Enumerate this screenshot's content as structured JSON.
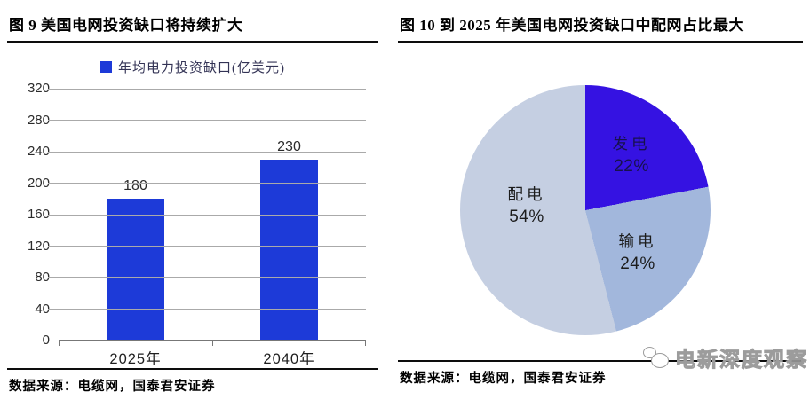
{
  "figure9": {
    "title": "图 9 美国电网投资缺口将持续扩大",
    "legend_label": "年均电力投资缺口(亿美元)",
    "source": "数据来源：电缆网，国泰君安证券"
  },
  "figure10": {
    "title": "图 10 到 2025 年美国电网投资缺口中配网占比最大",
    "source": "数据来源：电缆网，国泰君安证券",
    "watermark": "电新深度观察"
  },
  "colors": {
    "bar_blue": "#1d3ad8",
    "pie_generation_blue": "#3512e2",
    "pie_transmission_gray_blue": "#a2b7dc",
    "pie_distribution_light_blue": "#c5cfe2"
  },
  "chart_data": [
    {
      "type": "bar",
      "title": "图 9 美国电网投资缺口将持续扩大",
      "legend": [
        "年均电力投资缺口(亿美元)"
      ],
      "legend_position": "top",
      "categories": [
        "2025年",
        "2040年"
      ],
      "values": [
        180,
        230
      ],
      "xlabel": "",
      "ylabel": "",
      "ylim": [
        0,
        320
      ],
      "yticks": [
        0,
        40,
        80,
        120,
        160,
        200,
        240,
        280,
        320
      ],
      "grid": true,
      "bar_color": "#1d3ad8"
    },
    {
      "type": "pie",
      "title": "图 10 到 2025 年美国电网投资缺口中配网占比最大",
      "start_angle_deg": 0,
      "direction": "clockwise",
      "slices": [
        {
          "label": "发电",
          "value": 22,
          "pct_label": "22%",
          "color": "#3512e2"
        },
        {
          "label": "输电",
          "value": 24,
          "pct_label": "24%",
          "color": "#a2b7dc"
        },
        {
          "label": "配电",
          "value": 54,
          "pct_label": "54%",
          "color": "#c5cfe2"
        }
      ]
    }
  ]
}
